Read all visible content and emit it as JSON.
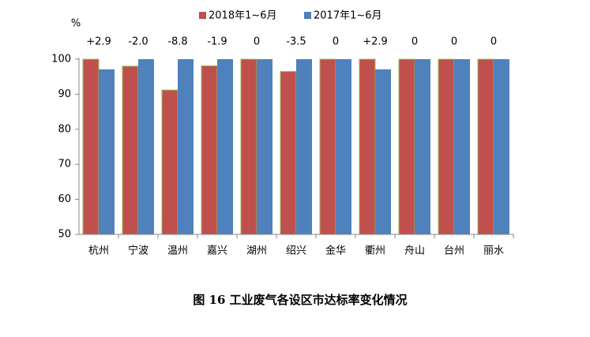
{
  "chart_data": {
    "type": "bar",
    "caption": "图 16   工业废气各设区市达标率变化情况",
    "y_label": "%",
    "categories": [
      "杭州",
      "宁波",
      "温州",
      "嘉兴",
      "湖州",
      "绍兴",
      "金华",
      "衢州",
      "舟山",
      "台州",
      "丽水"
    ],
    "series": [
      {
        "name": "2018年1~6月",
        "color": "#c0504d",
        "edge": "#9bbb59",
        "values": [
          100,
          98.0,
          91.2,
          98.1,
          100,
          96.5,
          100,
          100,
          100,
          100,
          100
        ]
      },
      {
        "name": "2017年1~6月",
        "color": "#4f81bd",
        "values": [
          97.1,
          100,
          100,
          100,
          100,
          100,
          100,
          97.1,
          100,
          100,
          100
        ]
      }
    ],
    "annotations": [
      "+2.9",
      "-2.0",
      "-8.8",
      "-1.9",
      "0",
      "-3.5",
      "0",
      "+2.9",
      "0",
      "0",
      "0"
    ],
    "annotation_colors": {
      "negative": "#e03030",
      "other": "#000000"
    },
    "ylim": [
      50,
      100
    ],
    "yticks": [
      50,
      60,
      70,
      80,
      90,
      100
    ],
    "grid": false
  }
}
